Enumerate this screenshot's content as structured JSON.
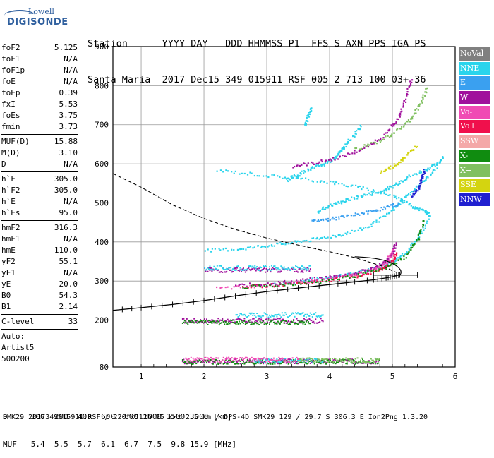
{
  "header": {
    "line1": "Station      YYYY DAY   DDD HHMMSS P1  FFS S AXN PPS IGA PS",
    "line2": "Santa Maria  2017 Dec15 349 015911 RSF 005 2 713 100 03+ 36"
  },
  "logo": {
    "line1": "Lowell",
    "line2": "DIGISONDE"
  },
  "params": {
    "group1": [
      {
        "label": "foF2",
        "value": "5.125"
      },
      {
        "label": "foF1",
        "value": "N/A"
      },
      {
        "label": "foF1p",
        "value": "N/A"
      },
      {
        "label": "foE",
        "value": "N/A"
      },
      {
        "label": "foEp",
        "value": "0.39"
      },
      {
        "label": "fxI",
        "value": "5.53"
      },
      {
        "label": "foEs",
        "value": "3.75"
      },
      {
        "label": "fmin",
        "value": "3.73"
      }
    ],
    "group2": [
      {
        "label": "MUF(D)",
        "value": "15.88"
      },
      {
        "label": "M(D)",
        "value": "3.10"
      },
      {
        "label": "D",
        "value": "N/A"
      }
    ],
    "group3": [
      {
        "label": "h`F",
        "value": "305.0"
      },
      {
        "label": "h`F2",
        "value": "305.0"
      },
      {
        "label": "h`E",
        "value": "N/A"
      },
      {
        "label": "h`Es",
        "value": "95.0"
      }
    ],
    "group4": [
      {
        "label": "hmF2",
        "value": "316.3"
      },
      {
        "label": "hmF1",
        "value": "N/A"
      },
      {
        "label": "hmE",
        "value": "110.0"
      },
      {
        "label": "yF2",
        "value": "55.1"
      },
      {
        "label": "yF1",
        "value": "N/A"
      },
      {
        "label": "yE",
        "value": "20.0"
      },
      {
        "label": "B0",
        "value": "54.3"
      },
      {
        "label": "B1",
        "value": "2.14"
      }
    ],
    "group5": [
      {
        "label": "C-level",
        "value": "33"
      }
    ],
    "auto": [
      "Auto:",
      "Artist5",
      "500200"
    ]
  },
  "legend": [
    {
      "label": "NoVal",
      "color": "#808080"
    },
    {
      "label": "NNE",
      "color": "#2ad4ec"
    },
    {
      "label": "E",
      "color": "#3aa0f0"
    },
    {
      "label": "W",
      "color": "#a0109c"
    },
    {
      "label": "Vo-",
      "color": "#f04ab4"
    },
    {
      "label": "Vo+",
      "color": "#f0104c"
    },
    {
      "label": "SSW",
      "color": "#f4a8a8"
    },
    {
      "label": "X-",
      "color": "#108c10"
    },
    {
      "label": "X+",
      "color": "#80c060"
    },
    {
      "label": "SSE",
      "color": "#d4d410"
    },
    {
      "label": "NNW",
      "color": "#2020d0"
    }
  ],
  "bottom": {
    "d_line": "D     100  200  400  600  800 1000 1500 3000 [km]",
    "muf_line": "MUF   5.4  5.5  5.7  6.1  6.7  7.5  9.8 15.9 [MHz]"
  },
  "footer": "SMK29_2017349015911.RSF / 220fx512h 25 kHz 2.5 km / DPS-4D SMK29 129 / 29.7 S 306.3 E Ion2Png 1.3.20",
  "chart_data": {
    "type": "scatter",
    "xlabel": "",
    "ylabel": "",
    "xlim": [
      0.55,
      6.0
    ],
    "ylim": [
      80,
      900
    ],
    "x_ticks": [
      1,
      2,
      3,
      4,
      5,
      6
    ],
    "y_ticks": [
      80,
      200,
      300,
      400,
      500,
      600,
      700,
      800,
      900
    ],
    "grid": true,
    "legend_position": "right",
    "profile_curve": {
      "name": "",
      "x": [
        0.55,
        1.0,
        1.5,
        2.0,
        2.5,
        3.0,
        3.5,
        4.0,
        4.4,
        4.7,
        4.9,
        5.0,
        5.1,
        5.125
      ],
      "y": [
        225,
        232,
        240,
        250,
        262,
        273,
        282,
        291,
        298,
        303,
        308,
        311,
        315,
        316
      ]
    },
    "dashed_curve": {
      "name": "",
      "x": [
        0.55,
        1.0,
        1.5,
        2.0,
        2.5,
        3.0,
        3.5,
        4.0,
        4.4,
        4.7,
        4.9,
        5.0,
        5.1
      ],
      "y": [
        575,
        540,
        495,
        460,
        432,
        410,
        392,
        375,
        360,
        345,
        335,
        326,
        320
      ]
    },
    "error_bar": {
      "x_min": 4.7,
      "x_max": 5.4,
      "y": 315
    },
    "traces": [
      {
        "series": "NNE",
        "x": [
          2.0,
          2.6,
          3.0,
          3.4,
          3.8,
          4.2,
          4.6,
          4.9,
          5.1,
          5.3,
          5.5,
          5.7
        ],
        "y": [
          380,
          385,
          393,
          400,
          410,
          422,
          440,
          470,
          500,
          530,
          560,
          590
        ]
      },
      {
        "series": "NNE",
        "x": [
          2.2,
          2.8,
          3.4,
          4.0,
          4.5,
          5.0,
          5.3,
          5.5,
          5.6
        ],
        "y": [
          585,
          575,
          565,
          555,
          540,
          520,
          495,
          480,
          470
        ]
      },
      {
        "series": "NNE",
        "x": [
          3.3,
          3.5,
          3.7,
          3.9,
          4.1,
          4.2,
          4.3,
          4.5
        ],
        "y": [
          560,
          575,
          590,
          600,
          620,
          640,
          660,
          700
        ]
      },
      {
        "series": "NNE",
        "x": [
          3.0,
          3.5,
          4.0,
          4.4,
          4.7,
          5.0,
          5.2,
          5.4,
          5.6
        ],
        "y": [
          290,
          300,
          312,
          322,
          335,
          352,
          375,
          410,
          470
        ]
      },
      {
        "series": "NNE",
        "x": [
          3.8,
          4.0,
          4.2,
          4.5,
          4.8,
          5.0,
          5.2,
          5.5,
          5.7,
          5.8
        ],
        "y": [
          480,
          495,
          505,
          520,
          530,
          545,
          565,
          585,
          600,
          620
        ]
      },
      {
        "series": "NNE",
        "x": [
          3.6,
          3.65,
          3.7
        ],
        "y": [
          700,
          725,
          745
        ]
      },
      {
        "series": "W",
        "x": [
          2.5,
          3.0,
          3.5,
          4.0,
          4.4,
          4.7,
          4.9,
          5.0,
          5.05
        ],
        "y": [
          290,
          295,
          302,
          312,
          322,
          335,
          352,
          375,
          400
        ]
      },
      {
        "series": "W",
        "x": [
          3.4,
          3.8,
          4.2,
          4.6,
          4.9,
          5.1,
          5.2,
          5.3
        ],
        "y": [
          596,
          605,
          620,
          645,
          680,
          720,
          770,
          820
        ]
      },
      {
        "series": "Vo-",
        "x": [
          2.2,
          2.8,
          3.3,
          3.8,
          4.3,
          4.7,
          4.9,
          5.0
        ],
        "y": [
          283,
          288,
          294,
          303,
          315,
          330,
          350,
          380
        ]
      },
      {
        "series": "Vo+",
        "x": [
          2.6,
          3.2,
          3.8,
          4.4,
          4.8,
          5.0,
          5.05
        ],
        "y": [
          287,
          292,
          300,
          313,
          330,
          352,
          375
        ]
      },
      {
        "series": "X-",
        "x": [
          2.6,
          3.2,
          3.8,
          4.4,
          4.9,
          5.2,
          5.4,
          5.5
        ],
        "y": [
          285,
          292,
          300,
          315,
          335,
          365,
          410,
          460
        ]
      },
      {
        "series": "X+",
        "x": [
          4.4,
          4.8,
          5.1,
          5.3,
          5.45,
          5.55
        ],
        "y": [
          640,
          660,
          690,
          720,
          760,
          800
        ]
      },
      {
        "series": "SSE",
        "x": [
          4.8,
          5.0,
          5.2,
          5.4
        ],
        "y": [
          580,
          595,
          620,
          650
        ]
      },
      {
        "series": "NNW",
        "x": [
          5.3,
          5.4,
          5.45,
          5.5
        ],
        "y": [
          520,
          540,
          560,
          585
        ]
      },
      {
        "series": "E",
        "x": [
          3.7,
          4.0,
          4.3,
          4.6,
          4.9,
          5.1
        ],
        "y": [
          455,
          460,
          468,
          478,
          490,
          500
        ]
      }
    ],
    "layers": [
      {
        "series": "W",
        "x_start": 1.65,
        "x_end": 3.9,
        "y": 200
      },
      {
        "series": "X-",
        "x_start": 1.65,
        "x_end": 3.7,
        "y": 196
      },
      {
        "series": "NNE",
        "x_start": 2.5,
        "x_end": 3.9,
        "y": 215
      },
      {
        "series": "W",
        "x_start": 1.65,
        "x_end": 4.8,
        "y": 96
      },
      {
        "series": "X-",
        "x_start": 1.65,
        "x_end": 4.8,
        "y": 95
      },
      {
        "series": "NNE",
        "x_start": 2.8,
        "x_end": 3.9,
        "y": 98
      },
      {
        "series": "Vo-",
        "x_start": 1.7,
        "x_end": 3.5,
        "y": 100
      },
      {
        "series": "X+",
        "x_start": 3.5,
        "x_end": 4.8,
        "y": 99
      },
      {
        "series": "W",
        "x_start": 2.0,
        "x_end": 3.7,
        "y": 330
      },
      {
        "series": "NNE",
        "x_start": 2.0,
        "x_end": 3.7,
        "y": 335
      }
    ]
  }
}
